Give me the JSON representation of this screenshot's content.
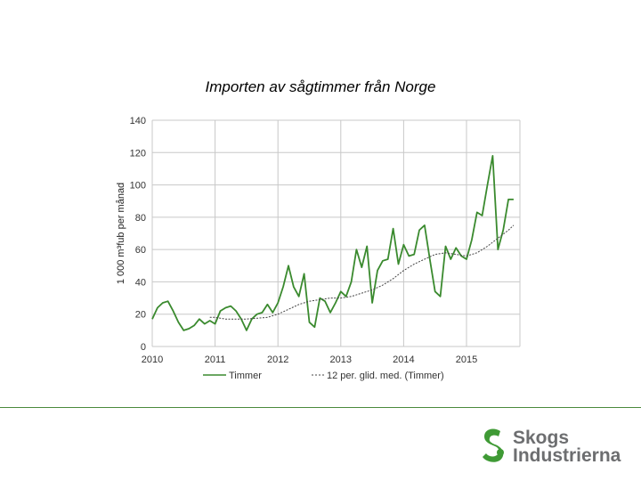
{
  "slide": {
    "title": "Importen av sågtimmer från Norge",
    "logo_line1": "Skogs",
    "logo_line2": "Industrierna"
  },
  "colors": {
    "series_main": "#3a8a2e",
    "series_avg": "#444444",
    "grid": "#c8c8c8",
    "footer_line": "#4a8a3c",
    "logo_green": "#3f9a35"
  },
  "chart_data": {
    "type": "line",
    "title": "",
    "xlabel": "",
    "ylabel": "1 000 m³fub per månad",
    "ylim": [
      0,
      140
    ],
    "xlim": [
      2010,
      2015.85
    ],
    "yticks": [
      0,
      20,
      40,
      60,
      80,
      100,
      120,
      140
    ],
    "xticks": [
      "2010",
      "2011",
      "2012",
      "2013",
      "2014",
      "2015"
    ],
    "grid": true,
    "legend_position": "bottom",
    "series": [
      {
        "name": "Timmer",
        "style": "solid",
        "x": [
          2010.0,
          2010.083,
          2010.167,
          2010.25,
          2010.333,
          2010.417,
          2010.5,
          2010.583,
          2010.667,
          2010.75,
          2010.833,
          2010.917,
          2011.0,
          2011.083,
          2011.167,
          2011.25,
          2011.333,
          2011.417,
          2011.5,
          2011.583,
          2011.667,
          2011.75,
          2011.833,
          2011.917,
          2012.0,
          2012.083,
          2012.167,
          2012.25,
          2012.333,
          2012.417,
          2012.5,
          2012.583,
          2012.667,
          2012.75,
          2012.833,
          2012.917,
          2013.0,
          2013.083,
          2013.167,
          2013.25,
          2013.333,
          2013.417,
          2013.5,
          2013.583,
          2013.667,
          2013.75,
          2013.833,
          2013.917,
          2014.0,
          2014.083,
          2014.167,
          2014.25,
          2014.333,
          2014.417,
          2014.5,
          2014.583,
          2014.667,
          2014.75,
          2014.833,
          2014.917,
          2015.0,
          2015.083,
          2015.167,
          2015.25,
          2015.333,
          2015.417,
          2015.5,
          2015.583,
          2015.667,
          2015.75
        ],
        "y": [
          17,
          24,
          27,
          28,
          22,
          15,
          10,
          11,
          13,
          17,
          14,
          16,
          14,
          22,
          24,
          25,
          22,
          17,
          10,
          17,
          20,
          21,
          26,
          21,
          27,
          37,
          50,
          37,
          31,
          45,
          15,
          12,
          30,
          28,
          21,
          27,
          34,
          31,
          40,
          60,
          49,
          62,
          27,
          47,
          53,
          54,
          73,
          51,
          63,
          56,
          57,
          72,
          75,
          54,
          34,
          31,
          62,
          54,
          61,
          56,
          54,
          66,
          83,
          81,
          100,
          118,
          60,
          72,
          91,
          91
        ],
        "values_note_hidden": ""
      },
      {
        "name": "12 per. glid. med. (Timmer)",
        "style": "dotted",
        "x": [
          2010.917,
          2011.0,
          2011.167,
          2011.333,
          2011.5,
          2011.667,
          2011.833,
          2012.0,
          2012.167,
          2012.333,
          2012.5,
          2012.667,
          2012.833,
          2013.0,
          2013.167,
          2013.333,
          2013.5,
          2013.667,
          2013.833,
          2014.0,
          2014.167,
          2014.333,
          2014.5,
          2014.667,
          2014.833,
          2015.0,
          2015.167,
          2015.333,
          2015.5,
          2015.667,
          2015.75
        ],
        "y": [
          18,
          18,
          17,
          17,
          17,
          17.5,
          18,
          20,
          23,
          26,
          28,
          29,
          30,
          30,
          31,
          33,
          35,
          38,
          42,
          47,
          51,
          54,
          57,
          58,
          57,
          56,
          58,
          62,
          67,
          72,
          75
        ]
      }
    ]
  }
}
